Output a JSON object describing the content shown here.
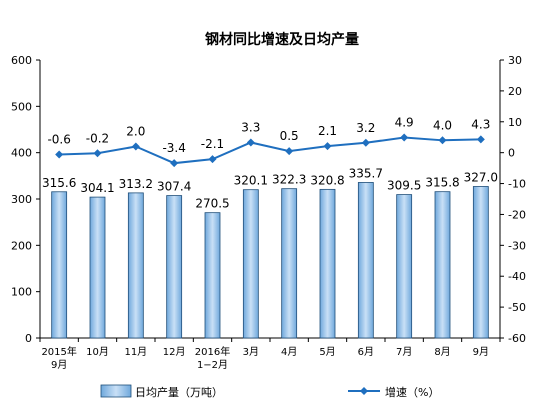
{
  "chart_data": {
    "title": "钢材同比增速及日均产量",
    "type": "bar",
    "categories": [
      [
        "2015年",
        "9月"
      ],
      [
        "10月"
      ],
      [
        "11月"
      ],
      [
        "12月"
      ],
      [
        "2016年",
        "1−2月"
      ],
      [
        "3月"
      ],
      [
        "4月"
      ],
      [
        "5月"
      ],
      [
        "6月"
      ],
      [
        "7月"
      ],
      [
        "8月"
      ],
      [
        "9月"
      ]
    ],
    "left_axis": {
      "ylim": [
        0,
        600
      ],
      "ticks": [
        0,
        100,
        200,
        300,
        400,
        500,
        600
      ]
    },
    "right_axis": {
      "ylim": [
        -60,
        30
      ],
      "ticks": [
        -60,
        -50,
        -40,
        -30,
        -20,
        -10,
        0,
        10,
        20,
        30
      ]
    },
    "series": [
      {
        "name": "日均产量（万吨）",
        "type": "bar",
        "axis": "left",
        "values": [
          315.6,
          304.1,
          313.2,
          307.4,
          270.5,
          320.1,
          322.3,
          320.8,
          335.7,
          309.5,
          315.8,
          327.0
        ],
        "labels": [
          "315.6",
          "304.1",
          "313.2",
          "307.4",
          "270.5",
          "320.1",
          "322.3",
          "320.8",
          "335.7",
          "309.5",
          "315.8",
          "327.0"
        ]
      },
      {
        "name": "增速（%）",
        "type": "line",
        "axis": "right",
        "values": [
          -0.6,
          -0.2,
          2.0,
          -3.4,
          -2.1,
          3.3,
          0.5,
          2.1,
          3.2,
          4.9,
          4.0,
          4.3
        ],
        "labels": [
          "-0.6",
          "-0.2",
          "2.0",
          "-3.4",
          "-2.1",
          "3.3",
          "0.5",
          "2.1",
          "3.2",
          "4.9",
          "4.0",
          "4.3"
        ]
      }
    ],
    "grid": false,
    "legend": "bottom",
    "colors": {
      "bar_fill": "#9cc3ea",
      "bar_stroke": "#1f4e79",
      "line": "#1f6fbf",
      "axis": "#000000"
    }
  }
}
